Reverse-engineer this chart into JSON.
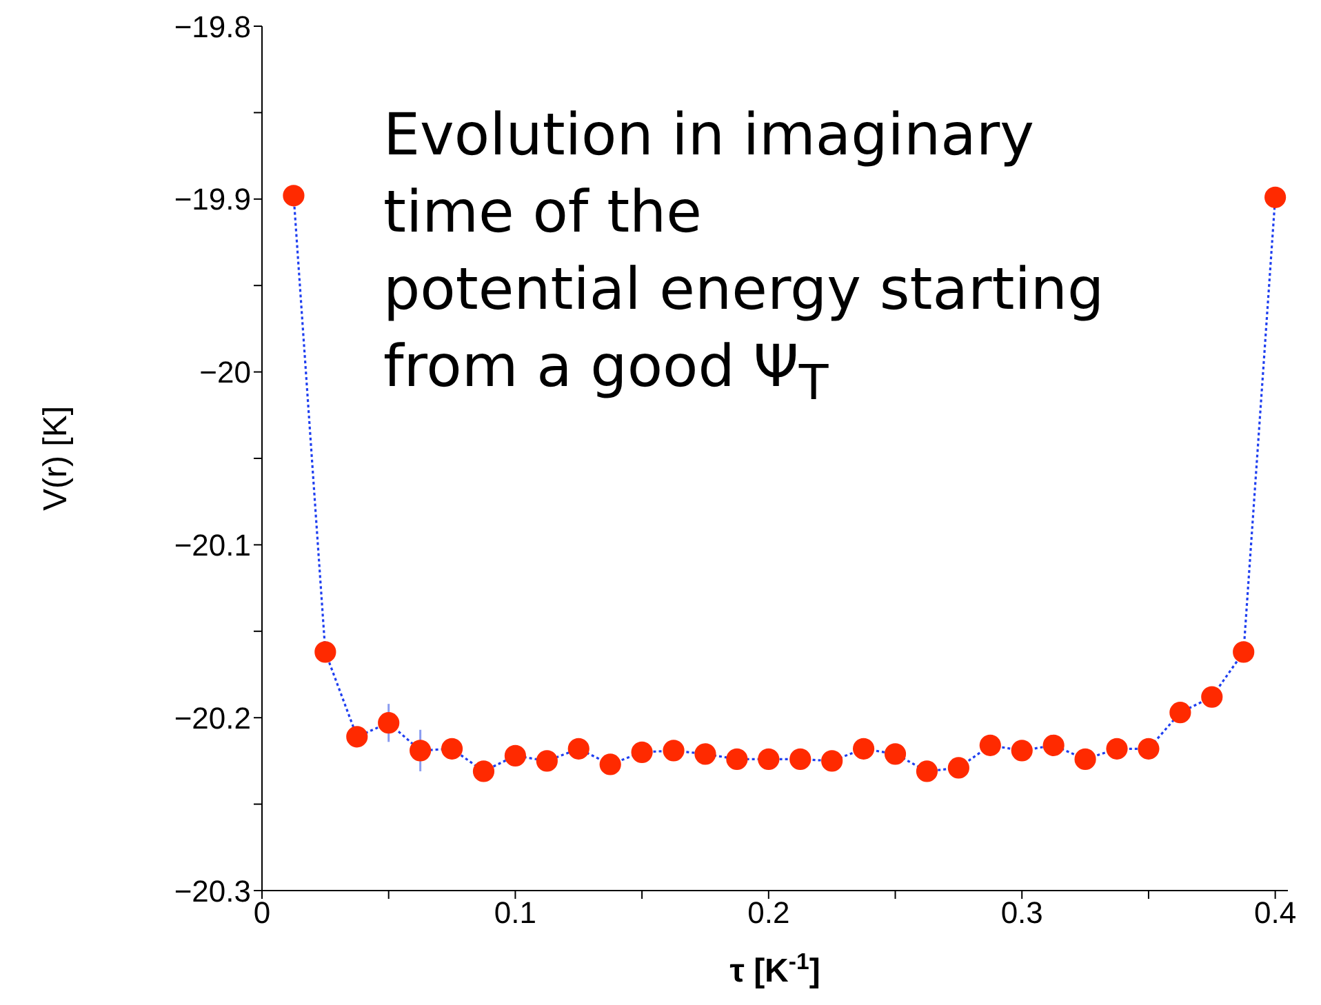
{
  "chart_data": {
    "type": "line",
    "xlabel": "τ  [K$^{-1}$]",
    "ylabel": "V(r)  [K]",
    "x": [
      0.0125,
      0.025,
      0.0375,
      0.05,
      0.0625,
      0.075,
      0.0875,
      0.1,
      0.1125,
      0.125,
      0.1375,
      0.15,
      0.1625,
      0.175,
      0.1875,
      0.2,
      0.2125,
      0.225,
      0.2375,
      0.25,
      0.2625,
      0.275,
      0.2875,
      0.3,
      0.3125,
      0.325,
      0.3375,
      0.35,
      0.3625,
      0.375,
      0.3875,
      0.4
    ],
    "series": [
      {
        "color": "#ff2a00",
        "values": [
          -19.898,
          -20.162,
          -20.211,
          -20.203,
          -20.219,
          -20.218,
          -20.231,
          -20.222,
          -20.225,
          -20.218,
          -20.227,
          -20.22,
          -20.219,
          -20.221,
          -20.224,
          -20.224,
          -20.224,
          -20.225,
          -20.218,
          -20.221,
          -20.231,
          -20.229,
          -20.216,
          -20.219,
          -20.216,
          -20.224,
          -20.218,
          -20.218,
          -20.197,
          -20.188,
          -20.162,
          -19.899
        ],
        "errors": [
          null,
          null,
          null,
          0.011,
          0.012,
          null,
          null,
          null,
          null,
          null,
          null,
          null,
          null,
          null,
          null,
          null,
          null,
          null,
          null,
          null,
          null,
          null,
          null,
          null,
          null,
          null,
          null,
          null,
          null,
          null,
          null,
          null
        ]
      }
    ],
    "line_style": "dotted",
    "marker": "circle",
    "xlim": [
      0,
      0.405
    ],
    "xticks": [
      0,
      {
        "value": 0.05,
        "label": null
      },
      0.1,
      {
        "value": 0.15,
        "label": null
      },
      0.2,
      {
        "value": 0.25,
        "label": null
      },
      0.3,
      {
        "value": 0.35,
        "label": null
      },
      0.4
    ],
    "ylim": [
      -20.3,
      -19.8
    ],
    "yticks": [
      -20.3,
      {
        "value": -20.25,
        "label": null
      },
      -20.2,
      {
        "value": -20.15,
        "label": null
      },
      -20.1,
      {
        "value": -20.05,
        "label": null
      },
      -20,
      {
        "value": -19.95,
        "label": null
      },
      -19.9,
      {
        "value": -19.85,
        "label": null
      },
      -19.8
    ],
    "grid": false,
    "legend": false,
    "annotations": [
      "Evolution in imaginary\ntime of the\npotential energy starting\nfrom a good Ψ$_{T}$"
    ]
  }
}
